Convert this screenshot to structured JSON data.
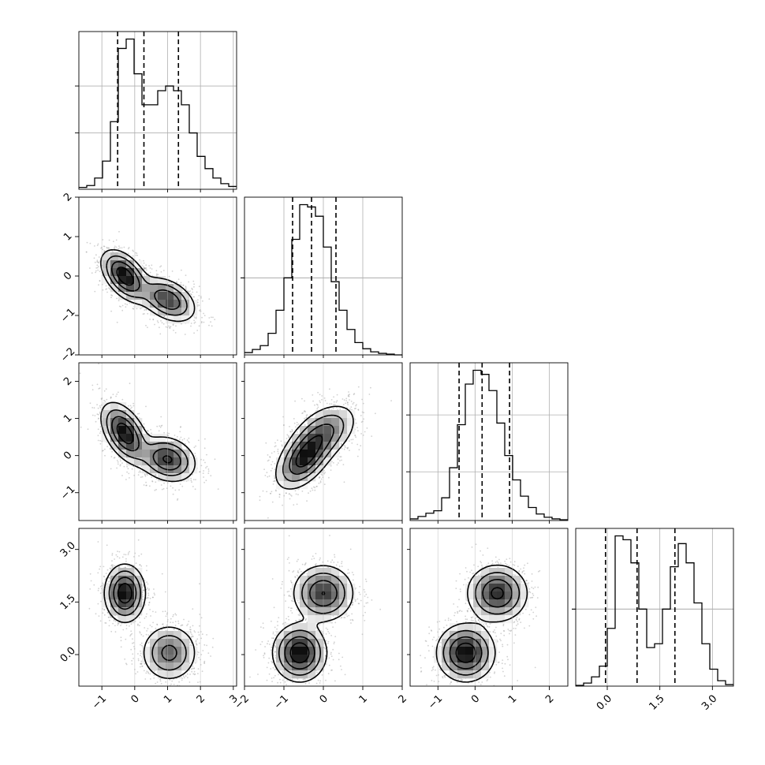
{
  "chart_data": {
    "type": "corner",
    "title": "",
    "quantile_lines": [
      0.16,
      0.5,
      0.84
    ],
    "variables": [
      {
        "index": 0,
        "range": [
          -1.7,
          3.1
        ],
        "ticks": [
          -1,
          0,
          1,
          2,
          3
        ],
        "tick_labels": [
          "−1",
          "0",
          "1",
          "2",
          "3"
        ],
        "quantiles": [
          -0.52,
          0.28,
          1.33
        ],
        "hist": {
          "start": -1.7,
          "bin_width": 0.24,
          "counts": [
            2,
            4,
            12,
            30,
            72,
            150,
            160,
            123,
            90,
            90,
            105,
            110,
            105,
            90,
            60,
            35,
            22,
            12,
            6,
            3
          ]
        }
      },
      {
        "index": 1,
        "range": [
          -2.0,
          2.0
        ],
        "ticks": [
          -2,
          -1,
          0,
          1,
          2
        ],
        "tick_labels": [
          "−2",
          "−1",
          "0",
          "1",
          "2"
        ],
        "quantiles": [
          -0.78,
          -0.3,
          0.32
        ],
        "hist": {
          "start": -2.0,
          "bin_width": 0.2,
          "counts": [
            3,
            7,
            12,
            28,
            58,
            100,
            150,
            195,
            192,
            180,
            140,
            95,
            58,
            33,
            16,
            8,
            4,
            2,
            1,
            0
          ]
        }
      },
      {
        "index": 2,
        "range": [
          -1.75,
          2.5
        ],
        "ticks": [
          -1,
          0,
          1,
          2
        ],
        "tick_labels": [
          "−1",
          "0",
          "1",
          "2"
        ],
        "quantiles": [
          -0.43,
          0.19,
          0.93
        ],
        "hist": {
          "start": -1.75,
          "bin_width": 0.2125,
          "counts": [
            2,
            5,
            9,
            12,
            28,
            65,
            118,
            168,
            185,
            180,
            160,
            120,
            80,
            50,
            30,
            16,
            8,
            4,
            2,
            1
          ]
        }
      },
      {
        "index": 3,
        "range": [
          -0.9,
          3.6
        ],
        "ticks": [
          0.0,
          1.5,
          3.0
        ],
        "tick_labels": [
          "0.0",
          "1.5",
          "3.0"
        ],
        "quantiles": [
          -0.05,
          0.85,
          1.93
        ],
        "hist": {
          "start": -0.9,
          "bin_width": 0.225,
          "counts": [
            1,
            4,
            12,
            26,
            75,
            195,
            190,
            160,
            100,
            50,
            55,
            100,
            155,
            185,
            160,
            108,
            55,
            22,
            7,
            2
          ]
        }
      }
    ],
    "scatter_pairs": [
      {
        "x": 0,
        "y": 1,
        "modes": [
          {
            "mx": -0.3,
            "my": 0.0,
            "sx": 0.35,
            "sy": 0.32,
            "rho": -0.5,
            "w": 1.0
          },
          {
            "mx": 1.0,
            "my": -0.6,
            "sx": 0.42,
            "sy": 0.28,
            "rho": -0.4,
            "w": 0.85
          }
        ]
      },
      {
        "x": 0,
        "y": 2,
        "modes": [
          {
            "mx": -0.3,
            "my": 0.6,
            "sx": 0.35,
            "sy": 0.4,
            "rho": -0.5,
            "w": 1.0
          },
          {
            "mx": 1.0,
            "my": -0.1,
            "sx": 0.42,
            "sy": 0.3,
            "rho": -0.2,
            "w": 0.85
          }
        ]
      },
      {
        "x": 1,
        "y": 2,
        "modes": [
          {
            "mx": -0.5,
            "my": -0.1,
            "sx": 0.35,
            "sy": 0.4,
            "rho": 0.5,
            "w": 1.0
          },
          {
            "mx": 0.0,
            "my": 0.6,
            "sx": 0.42,
            "sy": 0.4,
            "rho": 0.45,
            "w": 0.85
          }
        ]
      },
      {
        "x": 0,
        "y": 3,
        "modes": [
          {
            "mx": -0.3,
            "my": 1.75,
            "sx": 0.3,
            "sy": 0.4,
            "rho": 0.0,
            "w": 1.0
          },
          {
            "mx": 1.05,
            "my": 0.05,
            "sx": 0.42,
            "sy": 0.4,
            "rho": 0.0,
            "w": 0.85
          }
        ]
      },
      {
        "x": 1,
        "y": 3,
        "modes": [
          {
            "mx": -0.6,
            "my": 0.05,
            "sx": 0.33,
            "sy": 0.4,
            "rho": 0.0,
            "w": 1.0
          },
          {
            "mx": 0.0,
            "my": 1.75,
            "sx": 0.38,
            "sy": 0.4,
            "rho": 0.0,
            "w": 0.9
          }
        ]
      },
      {
        "x": 2,
        "y": 3,
        "modes": [
          {
            "mx": -0.25,
            "my": 0.05,
            "sx": 0.38,
            "sy": 0.4,
            "rho": 0.0,
            "w": 1.0
          },
          {
            "mx": 0.6,
            "my": 1.75,
            "sx": 0.4,
            "sy": 0.4,
            "rho": 0.0,
            "w": 0.9
          }
        ]
      }
    ],
    "grid": true,
    "legend": "none"
  }
}
